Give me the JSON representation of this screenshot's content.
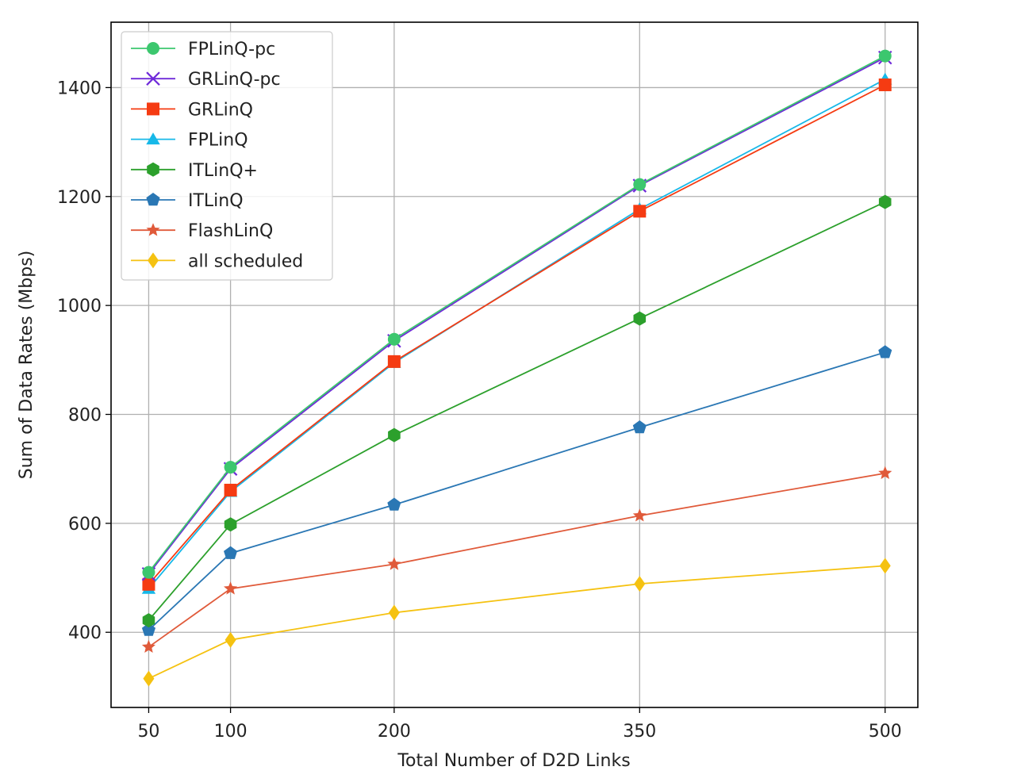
{
  "chart_data": {
    "type": "line",
    "title": "",
    "xlabel": "Total Number of D2D Links",
    "ylabel": "Sum of Data Rates (Mbps)",
    "x": [
      50,
      100,
      200,
      350,
      500
    ],
    "xticks": [
      50,
      100,
      200,
      350,
      500
    ],
    "yticks": [
      400,
      600,
      800,
      1000,
      1200,
      1400
    ],
    "xlim": [
      27,
      520
    ],
    "ylim": [
      262,
      1520
    ],
    "grid": true,
    "legend_position": "top-left",
    "series": [
      {
        "name": "all scheduled",
        "marker": "diamond",
        "color": "#f5c211",
        "values": [
          315,
          386,
          436,
          489,
          522
        ]
      },
      {
        "name": "FlashLinQ",
        "marker": "star",
        "color": "#e05a3a",
        "values": [
          373,
          480,
          525,
          614,
          692
        ]
      },
      {
        "name": "ITLinQ",
        "marker": "pentagon",
        "color": "#2a77b4",
        "values": [
          404,
          545,
          634,
          776,
          914
        ]
      },
      {
        "name": "ITLinQ+",
        "marker": "hexagon",
        "color": "#2ca02c",
        "values": [
          422,
          598,
          762,
          976,
          1190
        ]
      },
      {
        "name": "FPLinQ",
        "marker": "triangle",
        "color": "#17b8e8",
        "values": [
          480,
          658,
          895,
          1177,
          1415
        ]
      },
      {
        "name": "GRLinQ",
        "marker": "square",
        "color": "#f53b12",
        "values": [
          488,
          661,
          897,
          1173,
          1405
        ]
      },
      {
        "name": "GRLinQ-pc",
        "marker": "x",
        "color": "#6f2ad9",
        "values": [
          507,
          700,
          935,
          1220,
          1455
        ]
      },
      {
        "name": "FPLinQ-pc",
        "marker": "circle",
        "color": "#3cc76e",
        "values": [
          510,
          703,
          938,
          1222,
          1458
        ]
      }
    ],
    "legend_order": [
      "FPLinQ-pc",
      "GRLinQ-pc",
      "GRLinQ",
      "FPLinQ",
      "ITLinQ+",
      "ITLinQ",
      "FlashLinQ",
      "all scheduled"
    ]
  }
}
